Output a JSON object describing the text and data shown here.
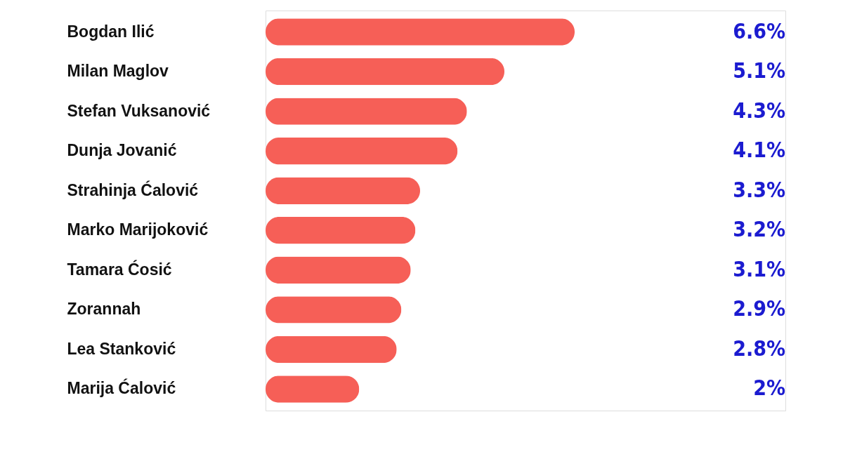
{
  "chart_data": {
    "type": "bar",
    "orientation": "horizontal",
    "categories": [
      "Bogdan Ilić",
      "Milan Maglov",
      "Stefan Vuksanović",
      "Dunja Jovanić",
      "Strahinja Ćalović",
      "Marko Marijoković",
      "Tamara Ćosić",
      "Zorannah",
      "Lea Stanković",
      "Marija Ćalović"
    ],
    "values": [
      6.6,
      5.1,
      4.3,
      4.1,
      3.3,
      3.2,
      3.1,
      2.9,
      2.8,
      2
    ],
    "value_labels": [
      "6.6%",
      "5.1%",
      "4.3%",
      "4.1%",
      "3.3%",
      "3.2%",
      "3.1%",
      "2.9%",
      "2.8%",
      "2%"
    ],
    "color": "#f65f57",
    "grid": false
  }
}
